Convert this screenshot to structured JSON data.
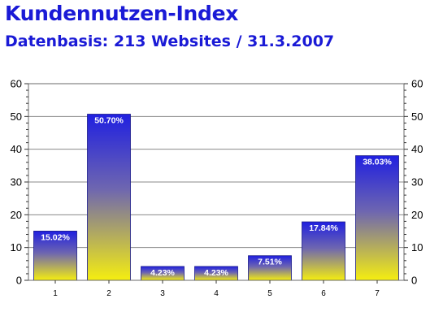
{
  "header": {
    "title": "Kundennutzen-Index",
    "subtitle": "Datenbasis: 213 Websites / 31.3.2007"
  },
  "chart_data": {
    "type": "bar",
    "title": "Kundennutzen-Index",
    "subtitle": "Datenbasis: 213 Websites / 31.3.2007",
    "categories": [
      "1",
      "2",
      "3",
      "4",
      "5",
      "6",
      "7"
    ],
    "values": [
      15.02,
      50.7,
      4.23,
      4.23,
      7.51,
      17.84,
      38.03
    ],
    "data_labels": [
      "15.02%",
      "50.70%",
      "4.23%",
      "4.23%",
      "7.51%",
      "17.84%",
      "38.03%"
    ],
    "xlabel": "",
    "ylabel": "",
    "ylim": [
      0,
      60
    ],
    "yticks": [
      0,
      10,
      20,
      30,
      40,
      50,
      60
    ],
    "y_axis_sides": [
      "left",
      "right"
    ],
    "grid": true,
    "bar_gradient": {
      "top": "#2020e0",
      "bottom": "#f5ee10"
    }
  }
}
